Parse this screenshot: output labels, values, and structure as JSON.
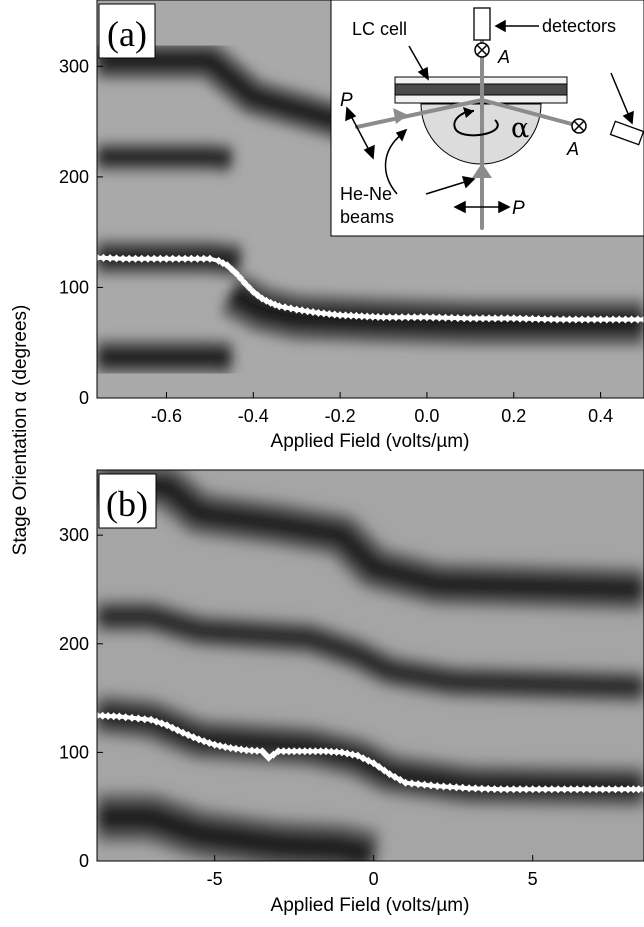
{
  "chart_data": [
    {
      "panel_label": "(a)",
      "type": "heatmap",
      "xlabel": "Applied Field (volts/µm)",
      "ylabel": "Stage Orientation α (degrees)",
      "xlim": [
        -0.76,
        0.5
      ],
      "ylim": [
        0,
        360
      ],
      "xticks": [
        -0.6,
        -0.4,
        -0.2,
        0.0,
        0.2,
        0.4
      ],
      "xtick_labels": [
        "-0.6",
        "-0.4",
        "-0.2",
        "0.0",
        "0.2",
        "0.4"
      ],
      "yticks": [
        0,
        100,
        200,
        300
      ],
      "ytick_labels": [
        "0",
        "100",
        "200",
        "300"
      ],
      "grid": false,
      "dark_bands": [
        {
          "x": [
            -0.76,
            -0.5,
            -0.4,
            -0.2,
            0.0,
            0.5
          ],
          "y": [
            305,
            305,
            272,
            250,
            248,
            247
          ],
          "half_width": 12
        },
        {
          "x": [
            -0.76,
            -0.5,
            -0.45
          ],
          "y": [
            218,
            218,
            216
          ],
          "half_width": 9
        },
        {
          "x": [
            -0.76,
            -0.5,
            -0.43
          ],
          "y": [
            127,
            127,
            124
          ],
          "half_width": 11
        },
        {
          "x": [
            -0.45,
            -0.38,
            -0.3,
            -0.1,
            0.1,
            0.5
          ],
          "y": [
            95,
            80,
            73,
            70,
            68,
            68
          ],
          "half_width": 15
        },
        {
          "x": [
            -0.76,
            -0.5,
            -0.45
          ],
          "y": [
            37,
            37,
            36
          ],
          "half_width": 11
        }
      ],
      "series": [
        {
          "marker": "white-diamond",
          "x": [
            -0.76,
            -0.7,
            -0.6,
            -0.5,
            -0.48,
            -0.46,
            -0.44,
            -0.42,
            -0.4,
            -0.38,
            -0.36,
            -0.34,
            -0.3,
            -0.25,
            -0.2,
            -0.15,
            -0.1,
            0.0,
            0.1,
            0.2,
            0.3,
            0.4,
            0.5
          ],
          "y": [
            127,
            126,
            126,
            126,
            124,
            120,
            113,
            104,
            96,
            90,
            86,
            83,
            80,
            77,
            75,
            74,
            73,
            73,
            72,
            72,
            71,
            71,
            71
          ]
        }
      ],
      "inset": {
        "labels": {
          "lc_cell": "LC cell",
          "detectors": "detectors",
          "analyzer_top": "A",
          "analyzer_right": "A",
          "polarizer_left": "P",
          "polarizer_bottom": "P",
          "rotation": "α",
          "beams_line1": "He-Ne",
          "beams_line2": "beams"
        }
      }
    },
    {
      "panel_label": "(b)",
      "type": "heatmap",
      "xlabel": "Applied Field (volts/µm)",
      "ylabel": "Stage Orientation α (degrees)",
      "xlim": [
        -8.7,
        8.5
      ],
      "ylim": [
        0,
        360
      ],
      "xticks": [
        -5,
        0,
        5
      ],
      "xtick_labels": [
        "-5",
        "0",
        "5"
      ],
      "yticks": [
        0,
        100,
        200,
        300
      ],
      "ytick_labels": [
        "0",
        "100",
        "200",
        "300"
      ],
      "grid": false,
      "dark_bands": [
        {
          "x": [
            -8.7,
            -6.5,
            -5.5,
            -3.0,
            -1.0,
            0.0,
            2.0,
            8.5
          ],
          "y": [
            345,
            345,
            320,
            310,
            300,
            270,
            255,
            250
          ],
          "half_width": 14
        },
        {
          "x": [
            -8.7,
            -7.0,
            -5.5,
            -2.0,
            -0.5,
            0.5,
            2.5,
            8.5
          ],
          "y": [
            225,
            225,
            212,
            205,
            190,
            175,
            165,
            160
          ],
          "half_width": 10
        },
        {
          "x": [
            -8.7,
            -7.0,
            -5.5,
            -2.0,
            -0.5,
            0.5,
            3.0,
            8.5
          ],
          "y": [
            135,
            130,
            112,
            105,
            95,
            80,
            70,
            68
          ],
          "half_width": 13
        },
        {
          "x": [
            -8.7,
            -7.0,
            -5.5,
            -3.0,
            -1.0,
            0.0
          ],
          "y": [
            40,
            40,
            25,
            15,
            12,
            5
          ],
          "half_width": 16
        }
      ],
      "series": [
        {
          "marker": "white-diamond",
          "x": [
            -8.7,
            -8.0,
            -7.0,
            -6.5,
            -6.0,
            -5.5,
            -5.0,
            -4.5,
            -4.0,
            -3.5,
            -3.3,
            -3.0,
            -2.5,
            -2.0,
            -1.5,
            -1.0,
            -0.5,
            0.0,
            0.5,
            1.0,
            2.0,
            3.0,
            4.0,
            5.0,
            6.0,
            7.0,
            8.0,
            8.5
          ],
          "y": [
            134,
            133,
            130,
            125,
            118,
            112,
            107,
            104,
            102,
            101,
            95,
            101,
            101,
            101,
            101,
            100,
            97,
            90,
            80,
            72,
            69,
            67,
            66,
            66,
            66,
            66,
            66,
            66
          ]
        }
      ]
    }
  ]
}
